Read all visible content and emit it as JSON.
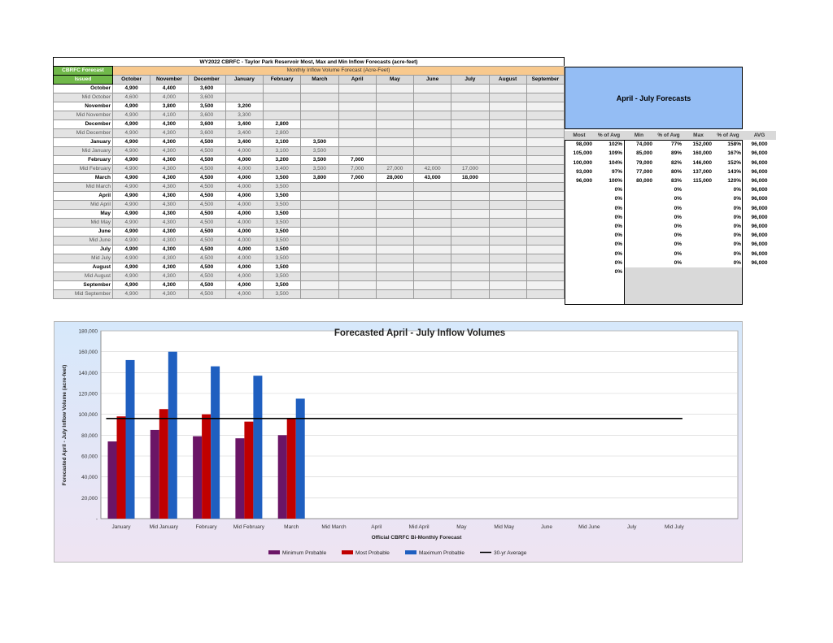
{
  "title": "WY2022 CBRFC - Taylor Park Reservoir Most, Max and Min Inflow Forecasts (acre-feet)",
  "table": {
    "header_left_1": "CBRFC Forecast",
    "header_left_2": "Issued",
    "header_span": "Monthly Inflow Volume Forecast (Acre-Feet)",
    "months": [
      "October",
      "November",
      "December",
      "January",
      "February",
      "March",
      "April",
      "May",
      "June",
      "July",
      "August",
      "September"
    ],
    "rows": [
      {
        "label": "October",
        "type": "odd",
        "values": [
          "4,900",
          "4,400",
          "3,600",
          "",
          "",
          "",
          "",
          "",
          "",
          "",
          "",
          ""
        ]
      },
      {
        "label": "Mid October",
        "type": "mid",
        "values": [
          "4,600",
          "4,000",
          "3,600",
          "",
          "",
          "",
          "",
          "",
          "",
          "",
          "",
          ""
        ]
      },
      {
        "label": "November",
        "type": "odd",
        "values": [
          "4,900",
          "3,800",
          "3,500",
          "3,200",
          "",
          "",
          "",
          "",
          "",
          "",
          "",
          ""
        ]
      },
      {
        "label": "Mid November",
        "type": "mid",
        "values": [
          "4,900",
          "4,100",
          "3,600",
          "3,300",
          "",
          "",
          "",
          "",
          "",
          "",
          "",
          ""
        ]
      },
      {
        "label": "December",
        "type": "odd",
        "values": [
          "4,900",
          "4,300",
          "3,600",
          "3,400",
          "2,800",
          "",
          "",
          "",
          "",
          "",
          "",
          ""
        ]
      },
      {
        "label": "Mid December",
        "type": "mid",
        "values": [
          "4,900",
          "4,300",
          "3,600",
          "3,400",
          "2,800",
          "",
          "",
          "",
          "",
          "",
          "",
          ""
        ]
      },
      {
        "label": "January",
        "type": "odd",
        "values": [
          "4,900",
          "4,300",
          "4,500",
          "3,400",
          "3,100",
          "3,500",
          "",
          "",
          "",
          "",
          "",
          ""
        ]
      },
      {
        "label": "Mid January",
        "type": "mid",
        "values": [
          "4,900",
          "4,300",
          "4,500",
          "4,000",
          "3,100",
          "3,500",
          "",
          "",
          "",
          "",
          "",
          ""
        ]
      },
      {
        "label": "February",
        "type": "odd",
        "values": [
          "4,900",
          "4,300",
          "4,500",
          "4,000",
          "3,200",
          "3,500",
          "7,000",
          "",
          "",
          "",
          "",
          ""
        ]
      },
      {
        "label": "Mid February",
        "type": "mid",
        "values": [
          "4,900",
          "4,300",
          "4,500",
          "4,000",
          "3,400",
          "3,500",
          "7,000",
          "27,000",
          "42,000",
          "17,000",
          "",
          ""
        ]
      },
      {
        "label": "March",
        "type": "odd",
        "values": [
          "4,900",
          "4,300",
          "4,500",
          "4,000",
          "3,500",
          "3,800",
          "7,000",
          "28,000",
          "43,000",
          "18,000",
          "",
          ""
        ]
      },
      {
        "label": "Mid March",
        "type": "mid",
        "values": [
          "4,900",
          "4,300",
          "4,500",
          "4,000",
          "3,500",
          "",
          "",
          "",
          "",
          "",
          "",
          ""
        ]
      },
      {
        "label": "April",
        "type": "odd",
        "values": [
          "4,900",
          "4,300",
          "4,500",
          "4,000",
          "3,500",
          "",
          "",
          "",
          "",
          "",
          "",
          ""
        ]
      },
      {
        "label": "Mid April",
        "type": "mid",
        "values": [
          "4,900",
          "4,300",
          "4,500",
          "4,000",
          "3,500",
          "",
          "",
          "",
          "",
          "",
          "",
          ""
        ]
      },
      {
        "label": "May",
        "type": "odd",
        "values": [
          "4,900",
          "4,300",
          "4,500",
          "4,000",
          "3,500",
          "",
          "",
          "",
          "",
          "",
          "",
          ""
        ]
      },
      {
        "label": "Mid May",
        "type": "mid",
        "values": [
          "4,900",
          "4,300",
          "4,500",
          "4,000",
          "3,500",
          "",
          "",
          "",
          "",
          "",
          "",
          ""
        ]
      },
      {
        "label": "June",
        "type": "odd",
        "values": [
          "4,900",
          "4,300",
          "4,500",
          "4,000",
          "3,500",
          "",
          "",
          "",
          "",
          "",
          "",
          ""
        ]
      },
      {
        "label": "Mid June",
        "type": "mid",
        "values": [
          "4,900",
          "4,300",
          "4,500",
          "4,000",
          "3,500",
          "",
          "",
          "",
          "",
          "",
          "",
          ""
        ]
      },
      {
        "label": "July",
        "type": "odd",
        "values": [
          "4,900",
          "4,300",
          "4,500",
          "4,000",
          "3,500",
          "",
          "",
          "",
          "",
          "",
          "",
          ""
        ]
      },
      {
        "label": "Mid July",
        "type": "mid",
        "values": [
          "4,900",
          "4,300",
          "4,500",
          "4,000",
          "3,500",
          "",
          "",
          "",
          "",
          "",
          "",
          ""
        ]
      },
      {
        "label": "August",
        "type": "odd",
        "values": [
          "4,900",
          "4,300",
          "4,500",
          "4,000",
          "3,500",
          "",
          "",
          "",
          "",
          "",
          "",
          ""
        ]
      },
      {
        "label": "Mid August",
        "type": "mid",
        "values": [
          "4,900",
          "4,300",
          "4,500",
          "4,000",
          "3,500",
          "",
          "",
          "",
          "",
          "",
          "",
          ""
        ]
      },
      {
        "label": "September",
        "type": "odd",
        "values": [
          "4,900",
          "4,300",
          "4,500",
          "4,000",
          "3,500",
          "",
          "",
          "",
          "",
          "",
          "",
          ""
        ]
      },
      {
        "label": "Mid September",
        "type": "mid",
        "values": [
          "4,900",
          "4,300",
          "4,500",
          "4,000",
          "3,500",
          "",
          "",
          "",
          "",
          "",
          "",
          ""
        ]
      }
    ]
  },
  "aj": {
    "box_title": "April - July Forecasts",
    "headers": [
      "Most",
      "% of Avg",
      "Min",
      "% of Avg",
      "Max",
      "% of Avg",
      "AVG"
    ],
    "rows": [
      [
        "98,000",
        "102%",
        "74,000",
        "77%",
        "152,000",
        "158%",
        "96,000"
      ],
      [
        "105,000",
        "109%",
        "85,000",
        "89%",
        "160,000",
        "167%",
        "96,000"
      ],
      [
        "100,000",
        "104%",
        "79,000",
        "82%",
        "146,000",
        "152%",
        "96,000"
      ],
      [
        "93,000",
        "97%",
        "77,000",
        "80%",
        "137,000",
        "143%",
        "96,000"
      ],
      [
        "96,000",
        "100%",
        "80,000",
        "83%",
        "115,000",
        "120%",
        "96,000"
      ],
      [
        "",
        "0%",
        "",
        "0%",
        "",
        "0%",
        "96,000"
      ],
      [
        "",
        "0%",
        "",
        "0%",
        "",
        "0%",
        "96,000"
      ],
      [
        "",
        "0%",
        "",
        "0%",
        "",
        "0%",
        "96,000"
      ],
      [
        "",
        "0%",
        "",
        "0%",
        "",
        "0%",
        "96,000"
      ],
      [
        "",
        "0%",
        "",
        "0%",
        "",
        "0%",
        "96,000"
      ],
      [
        "",
        "0%",
        "",
        "0%",
        "",
        "0%",
        "96,000"
      ],
      [
        "",
        "0%",
        "",
        "0%",
        "",
        "0%",
        "96,000"
      ],
      [
        "",
        "0%",
        "",
        "0%",
        "",
        "0%",
        "96,000"
      ],
      [
        "",
        "0%",
        "",
        "0%",
        "",
        "0%",
        "96,000"
      ],
      [
        "",
        "0%",
        "",
        "",
        "",
        "",
        ""
      ]
    ]
  },
  "colors": {
    "min": "#6b1566",
    "most": "#c00000",
    "max": "#1f5fc0",
    "avg": "#000000",
    "header_green": "#70b84a",
    "header_orange": "#f8c98e",
    "forecast_box": "#94bdf4"
  },
  "chart_data": {
    "type": "bar",
    "title": "Forecasted April - July Inflow Volumes",
    "xlabel": "Official CBRFC Bi-Monthly Forecast",
    "ylabel": "Forecasted April - July Inflow Volume (acre-feet)",
    "ylim": [
      0,
      180000
    ],
    "yticks": [
      "-",
      "20,000",
      "40,000",
      "60,000",
      "80,000",
      "100,000",
      "120,000",
      "140,000",
      "160,000",
      "180,000"
    ],
    "categories": [
      "January",
      "Mid January",
      "February",
      "Mid February",
      "March",
      "Mid March",
      "April",
      "Mid April",
      "May",
      "Mid May",
      "June",
      "Mid June",
      "July",
      "Mid July"
    ],
    "series": [
      {
        "name": "Minimum Probable",
        "values": [
          74000,
          85000,
          79000,
          77000,
          80000,
          null,
          null,
          null,
          null,
          null,
          null,
          null,
          null,
          null
        ]
      },
      {
        "name": "Most Probable",
        "values": [
          98000,
          105000,
          100000,
          93000,
          96000,
          null,
          null,
          null,
          null,
          null,
          null,
          null,
          null,
          null
        ]
      },
      {
        "name": "Maximum Probable",
        "values": [
          152000,
          160000,
          146000,
          137000,
          115000,
          null,
          null,
          null,
          null,
          null,
          null,
          null,
          null,
          null
        ]
      },
      {
        "name": "30-yr Average",
        "values": [
          96000,
          96000,
          96000,
          96000,
          96000,
          96000,
          96000,
          96000,
          96000,
          96000,
          96000,
          96000,
          96000,
          96000
        ]
      }
    ],
    "legend_position": "bottom",
    "grid": true
  }
}
